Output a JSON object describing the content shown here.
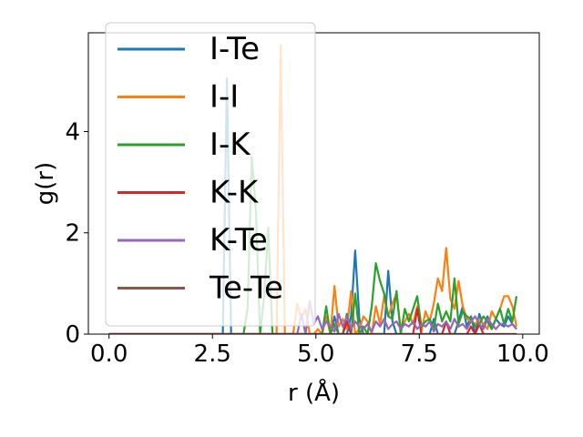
{
  "chart_data": {
    "type": "line",
    "title": "",
    "xlabel": "r (Å)",
    "ylabel": "g(r)",
    "xlim": [
      -0.5,
      10.4
    ],
    "ylim": [
      0,
      5.95
    ],
    "xticks": [
      0.0,
      2.5,
      5.0,
      7.5,
      10.0
    ],
    "xtick_labels": [
      "0.0",
      "2.5",
      "5.0",
      "7.5",
      "10.0"
    ],
    "yticks": [
      0,
      2,
      4
    ],
    "ytick_labels": [
      "0",
      "2",
      "4"
    ],
    "grid": false,
    "legend_position": "top-left",
    "series": [
      {
        "name": "I-Te",
        "color": "#1f77b4",
        "x": [
          0,
          2.75,
          2.85,
          2.95,
          3.05,
          3.15,
          5.35,
          5.45,
          5.55,
          5.75,
          5.85,
          5.95,
          6.05,
          6.15,
          6.65,
          6.75,
          6.85,
          6.95,
          7.05,
          7.75,
          7.85,
          7.95,
          8.35,
          8.45,
          8.55,
          8.65,
          8.75,
          8.85,
          8.95,
          9.05,
          9.15,
          9.25,
          9.35,
          9.45,
          9.55,
          9.65,
          9.75,
          9.85
        ],
        "y": [
          0,
          0,
          5.05,
          0,
          0,
          0,
          0,
          0.35,
          0,
          0,
          0.35,
          1.65,
          0.3,
          0,
          0,
          1.25,
          0.25,
          0,
          0,
          0,
          0.3,
          0,
          0,
          0.25,
          0.55,
          0.15,
          0.35,
          0,
          0.4,
          0.15,
          0.35,
          0.1,
          0.3,
          0.2,
          0.15,
          0.35,
          0.2,
          0.1
        ]
      },
      {
        "name": "I-I",
        "color": "#ff7f0e",
        "x": [
          0,
          4.05,
          4.15,
          4.25,
          4.35,
          4.45,
          4.55,
          4.65,
          4.75,
          4.85,
          4.95,
          5.05,
          5.15,
          5.25,
          5.35,
          5.45,
          5.55,
          5.65,
          5.75,
          5.85,
          5.95,
          6.05,
          6.15,
          6.25,
          6.35,
          6.45,
          6.55,
          6.65,
          6.75,
          6.85,
          6.95,
          7.05,
          7.15,
          7.25,
          7.35,
          7.45,
          7.55,
          7.65,
          7.75,
          7.85,
          7.95,
          8.05,
          8.15,
          8.25,
          8.35,
          8.45,
          8.55,
          8.65,
          8.75,
          8.85,
          8.95,
          9.05,
          9.15,
          9.25,
          9.35,
          9.45,
          9.55,
          9.65,
          9.75,
          9.85
        ],
        "y": [
          0,
          0,
          5.7,
          0,
          0,
          0,
          0.6,
          0.3,
          0.5,
          0,
          0,
          0.1,
          0,
          0.35,
          0,
          0.95,
          0.15,
          0.3,
          0.1,
          0.85,
          0,
          0.1,
          0.35,
          0.25,
          0,
          0.55,
          0.2,
          0.75,
          0.35,
          0.6,
          0.8,
          0.1,
          0.25,
          0.4,
          0.2,
          0.55,
          0.05,
          0.45,
          0.25,
          0.6,
          1.1,
          0.85,
          1.7,
          0.7,
          0.5,
          1.05,
          0.55,
          0.3,
          0.25,
          0.2,
          0.3,
          0.2,
          0.1,
          0.45,
          0.3,
          0.5,
          0.75,
          0.75,
          0.55,
          0.15
        ]
      },
      {
        "name": "I-K",
        "color": "#2ca02c",
        "x": [
          0,
          3.25,
          3.35,
          3.45,
          3.55,
          3.65,
          3.75,
          3.85,
          3.95,
          4.05,
          5.15,
          5.25,
          5.35,
          5.45,
          5.55,
          5.65,
          5.75,
          5.85,
          5.95,
          6.05,
          6.15,
          6.25,
          6.35,
          6.45,
          6.55,
          6.65,
          6.75,
          6.85,
          6.95,
          7.05,
          7.15,
          7.25,
          7.35,
          7.45,
          7.55,
          7.65,
          7.75,
          7.85,
          7.95,
          8.05,
          8.15,
          8.25,
          8.35,
          8.45,
          8.55,
          8.65,
          8.75,
          8.85,
          8.95,
          9.05,
          9.15,
          9.25,
          9.35,
          9.45,
          9.55,
          9.65,
          9.75,
          9.85
        ],
        "y": [
          0,
          0,
          0.5,
          3.5,
          2.45,
          0,
          0.75,
          2.1,
          0,
          0,
          0,
          0.55,
          0,
          0.2,
          0,
          0,
          0.4,
          0,
          0.8,
          0,
          0.15,
          0,
          0.55,
          1.4,
          1.05,
          0.8,
          0.35,
          0.3,
          0.85,
          0,
          0.5,
          0.25,
          0.5,
          0.75,
          0.15,
          0.25,
          0.3,
          0.1,
          0.6,
          0.25,
          0.45,
          0.25,
          1.1,
          0.2,
          0.45,
          0.35,
          0.3,
          0.15,
          0.2,
          0.35,
          0.25,
          0.1,
          0.3,
          0.5,
          0.2,
          0.5,
          0.25,
          0.75
        ]
      },
      {
        "name": "K-K",
        "color": "#d62728",
        "x": [
          0,
          5.65,
          5.75,
          5.85,
          7.35,
          7.45,
          7.55,
          8.05,
          8.15,
          8.25,
          8.65,
          8.75,
          8.85,
          8.95,
          9.05,
          9.85
        ],
        "y": [
          0,
          0,
          0.25,
          0,
          0,
          0.5,
          0,
          0,
          0.25,
          0,
          0,
          0.15,
          0,
          0.2,
          0,
          0
        ]
      },
      {
        "name": "K-Te",
        "color": "#9467bd",
        "x": [
          0,
          4.55,
          4.65,
          4.75,
          4.85,
          4.95,
          5.05,
          5.15,
          5.25,
          5.35,
          5.45,
          5.55,
          5.65,
          5.75,
          5.85,
          5.95,
          6.05,
          6.15,
          6.25,
          6.35,
          6.45,
          6.55,
          6.65,
          6.75,
          6.85,
          6.95,
          7.05,
          7.15,
          7.25,
          7.35,
          7.45,
          7.55,
          7.65,
          7.75,
          7.85,
          7.95,
          8.05,
          8.15,
          8.25,
          8.35,
          8.45,
          8.55,
          8.65,
          8.75,
          8.85,
          8.95,
          9.05,
          9.15,
          9.25,
          9.35,
          9.45,
          9.55,
          9.65,
          9.75,
          9.85
        ],
        "y": [
          0,
          0,
          0.4,
          0,
          0.65,
          0.2,
          0.35,
          0.1,
          0.25,
          0.15,
          0.05,
          0.4,
          0.15,
          0.35,
          0.1,
          0.25,
          0.15,
          0.1,
          0.2,
          0.05,
          0.25,
          0.15,
          0.3,
          0.1,
          0.2,
          0.25,
          0.1,
          0.2,
          0.15,
          0.25,
          0.1,
          0.2,
          0.15,
          0.25,
          0.05,
          0.2,
          0.15,
          0.25,
          0.1,
          0.3,
          0.15,
          0.2,
          0.1,
          0.25,
          0.35,
          0.2,
          0.1,
          0.3,
          0.2,
          0.1,
          0.2,
          0.2,
          0.15,
          0.2,
          0.1
        ]
      },
      {
        "name": "Te-Te",
        "color": "#8c564b",
        "x": [
          0,
          9.85
        ],
        "y": [
          0,
          0
        ]
      }
    ]
  }
}
